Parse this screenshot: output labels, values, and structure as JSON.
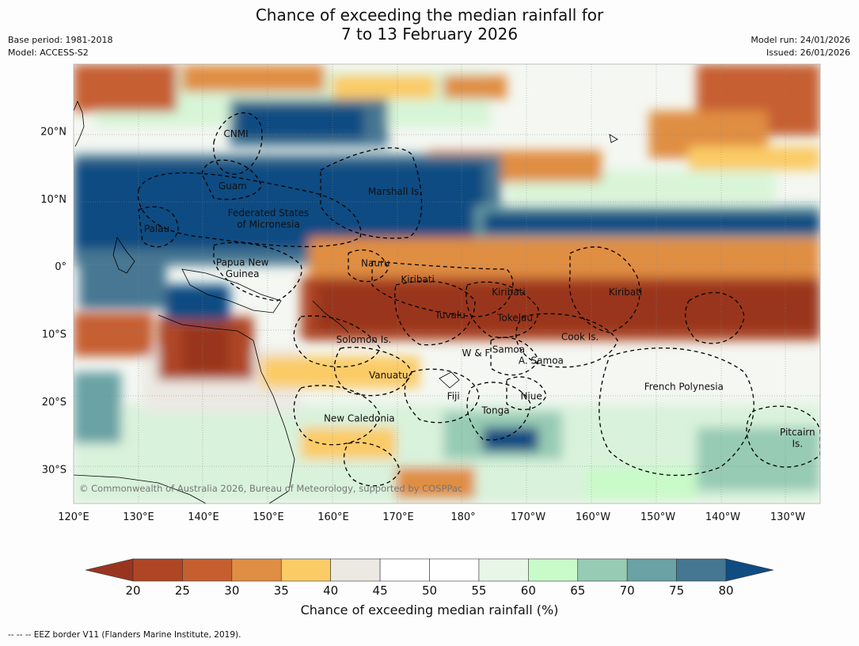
{
  "title": {
    "line1": "Chance of exceeding the median rainfall for",
    "line2": "7 to 13 February 2026"
  },
  "meta_left": {
    "base_period": "Base period: 1981-2018",
    "model": "Model: ACCESS-S2"
  },
  "meta_right": {
    "model_run": "Model run: 24/01/2026",
    "issued": "Issued: 26/01/2026"
  },
  "copyright": "© Commonwealth of Australia 2026, Bureau of Meteorology, supported by COSPPac",
  "map": {
    "lon_range": [
      120,
      235
    ],
    "lat_range": [
      -35,
      30
    ],
    "x_ticks": [
      {
        "lon": 120,
        "label": "120°E"
      },
      {
        "lon": 130,
        "label": "130°E"
      },
      {
        "lon": 140,
        "label": "140°E"
      },
      {
        "lon": 150,
        "label": "150°E"
      },
      {
        "lon": 160,
        "label": "160°E"
      },
      {
        "lon": 170,
        "label": "170°E"
      },
      {
        "lon": 180,
        "label": "180°"
      },
      {
        "lon": 190,
        "label": "170°W"
      },
      {
        "lon": 200,
        "label": "160°W"
      },
      {
        "lon": 210,
        "label": "150°W"
      },
      {
        "lon": 220,
        "label": "140°W"
      },
      {
        "lon": 230,
        "label": "130°W"
      }
    ],
    "y_ticks": [
      {
        "lat": 20,
        "label": "20°N"
      },
      {
        "lat": 10,
        "label": "10°N"
      },
      {
        "lat": 0,
        "label": "0°"
      },
      {
        "lat": -10,
        "label": "10°S"
      },
      {
        "lat": -20,
        "label": "20°S"
      },
      {
        "lat": -30,
        "label": "30°S"
      }
    ],
    "regions": [
      {
        "name": "CNMI",
        "lon": 145,
        "lat": 19.2
      },
      {
        "name": "Guam",
        "lon": 144.5,
        "lat": 11.5
      },
      {
        "name": "Marshall Is.",
        "lon": 169.5,
        "lat": 10.7
      },
      {
        "name": "Federated States",
        "lon": 150,
        "lat": 7.5
      },
      {
        "name": "of Micronesia",
        "lon": 150,
        "lat": 5.8
      },
      {
        "name": "Palau",
        "lon": 132.8,
        "lat": 5.2
      },
      {
        "name": "Papua New",
        "lon": 146,
        "lat": 0.2
      },
      {
        "name": "Guinea",
        "lon": 146,
        "lat": -1.5
      },
      {
        "name": "Nauru",
        "lon": 166.5,
        "lat": 0.1
      },
      {
        "name": "Kiribati",
        "lon": 173,
        "lat": -2.3
      },
      {
        "name": "Kiribati",
        "lon": 187,
        "lat": -4.2
      },
      {
        "name": "Kiribati",
        "lon": 205,
        "lat": -4.2
      },
      {
        "name": "Tuvalu",
        "lon": 178,
        "lat": -7.6
      },
      {
        "name": "Tokelau",
        "lon": 188,
        "lat": -8
      },
      {
        "name": "Solomon Is.",
        "lon": 164.7,
        "lat": -11.2
      },
      {
        "name": "Cook Is.",
        "lon": 198,
        "lat": -10.8
      },
      {
        "name": "W & F",
        "lon": 182,
        "lat": -13.2
      },
      {
        "name": "Samoa",
        "lon": 187,
        "lat": -12.7
      },
      {
        "name": "A. Samoa",
        "lon": 192,
        "lat": -14.3
      },
      {
        "name": "Vanuatu",
        "lon": 168.5,
        "lat": -16.5
      },
      {
        "name": "Fiji",
        "lon": 178.5,
        "lat": -19.6
      },
      {
        "name": "Niue",
        "lon": 190.5,
        "lat": -19.6
      },
      {
        "name": "French Polynesia",
        "lon": 214,
        "lat": -18.2
      },
      {
        "name": "Tonga",
        "lon": 185,
        "lat": -21.7
      },
      {
        "name": "New Caledonia",
        "lon": 164,
        "lat": -22.9
      },
      {
        "name": "Pitcairn",
        "lon": 231.5,
        "lat": -24.9
      },
      {
        "name": "Is.",
        "lon": 231.5,
        "lat": -26.6
      }
    ]
  },
  "colorbar": {
    "labels": [
      "20",
      "25",
      "30",
      "35",
      "40",
      "45",
      "50",
      "55",
      "60",
      "65",
      "70",
      "75",
      "80"
    ],
    "under_color": "#99351f",
    "over_color": "#0f4c82",
    "colors": [
      "#ae4625",
      "#c65f30",
      "#e08e43",
      "#fbcb66",
      "#ece9e3",
      "#ffffff",
      "#ffffff",
      "#e8f6e8",
      "#c9fac9",
      "#97cbb4",
      "#6aa2a5",
      "#467792"
    ],
    "title": "Chance of exceeding median rainfall (%)"
  },
  "footer": "--  --  -- EEZ border V11 (Flanders Marine Institute, 2019)."
}
